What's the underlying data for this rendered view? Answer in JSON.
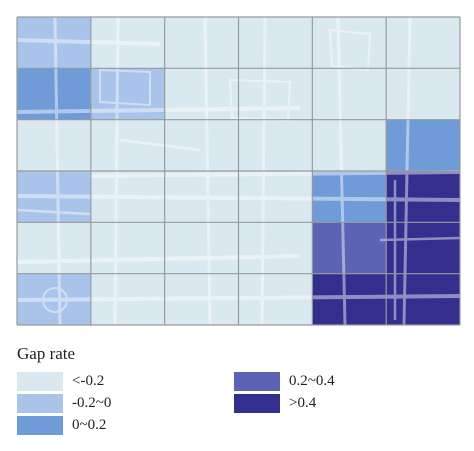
{
  "legend": {
    "title": "Gap rate",
    "items": [
      {
        "label": "<-0.2",
        "color": "#d9e9ef"
      },
      {
        "label": "-0.2~0",
        "color": "#a8c4ea"
      },
      {
        "label": "0~0.2",
        "color": "#6f9bd8"
      },
      {
        "label": "0.2~0.4",
        "color": "#5c63b4"
      },
      {
        "label": ">0.4",
        "color": "#332f8f"
      }
    ]
  },
  "grid": {
    "rows": 6,
    "cols": 6,
    "cells": [
      [
        1,
        0,
        0,
        0,
        0,
        0
      ],
      [
        2,
        1,
        0,
        0,
        0,
        0
      ],
      [
        0,
        0,
        0,
        0,
        0,
        2
      ],
      [
        1,
        0,
        0,
        0,
        2,
        4
      ],
      [
        0,
        0,
        0,
        0,
        3,
        4
      ],
      [
        1,
        0,
        0,
        0,
        4,
        4
      ]
    ]
  },
  "colors": {
    "grid_line": "#9a9a9a",
    "road": "#ffffff",
    "label": "#222222"
  }
}
